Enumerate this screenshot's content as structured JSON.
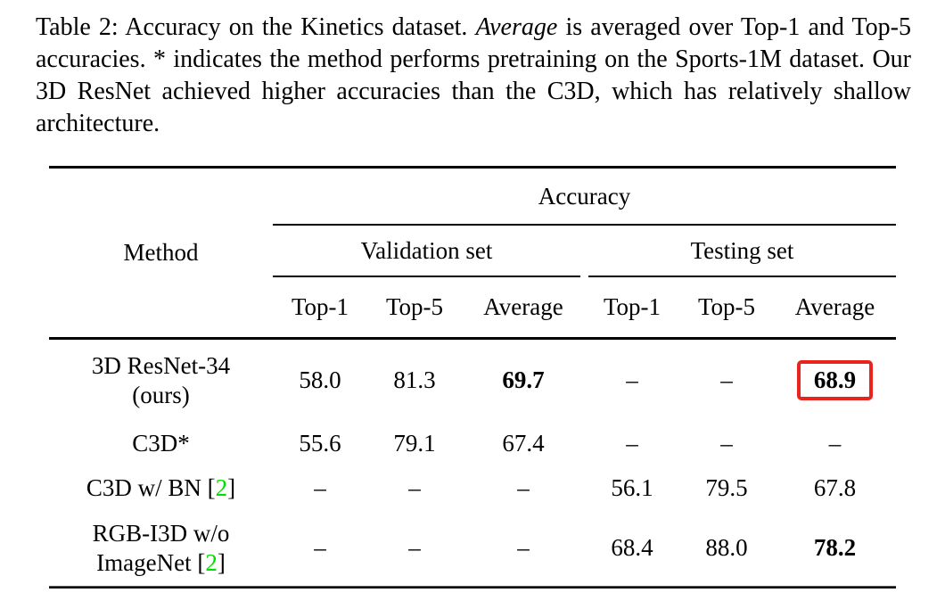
{
  "caption": {
    "pre_italic": "Table 2: Accuracy on the Kinetics dataset. ",
    "italic_word": "Average",
    "post_italic": " is averaged over Top-1 and Top-5 accuracies. * indicates the method performs pretraining on the Sports-1M dataset. Our 3D ResNet achieved higher accuracies than the C3D, which has relatively shallow architecture."
  },
  "table": {
    "method_header": "Method",
    "accuracy_header": "Accuracy",
    "validation_header": "Validation set",
    "testing_header": "Testing set",
    "subcols": [
      "Top-1",
      "Top-5",
      "Average",
      "Top-1",
      "Top-5",
      "Average"
    ],
    "rows": [
      {
        "method_line1": "3D ResNet-34",
        "method_line2": "(ours)",
        "values": [
          "58.0",
          "81.3",
          "69.7",
          "–",
          "–",
          "68.9"
        ]
      },
      {
        "method_line1": "C3D*",
        "values": [
          "55.6",
          "79.1",
          "67.4",
          "–",
          "–",
          "–"
        ]
      },
      {
        "method_pre": "C3D w/ BN [",
        "cite": "2",
        "method_post": "]",
        "values": [
          "–",
          "–",
          "–",
          "56.1",
          "79.5",
          "67.8"
        ]
      },
      {
        "method_line1": "RGB-I3D w/o",
        "method_pre": "ImageNet [",
        "cite": "2",
        "method_post": "]",
        "values": [
          "–",
          "–",
          "–",
          "68.4",
          "88.0",
          "78.2"
        ]
      }
    ],
    "highlight_color": "#ea231c",
    "citation_color": "#00e000"
  }
}
